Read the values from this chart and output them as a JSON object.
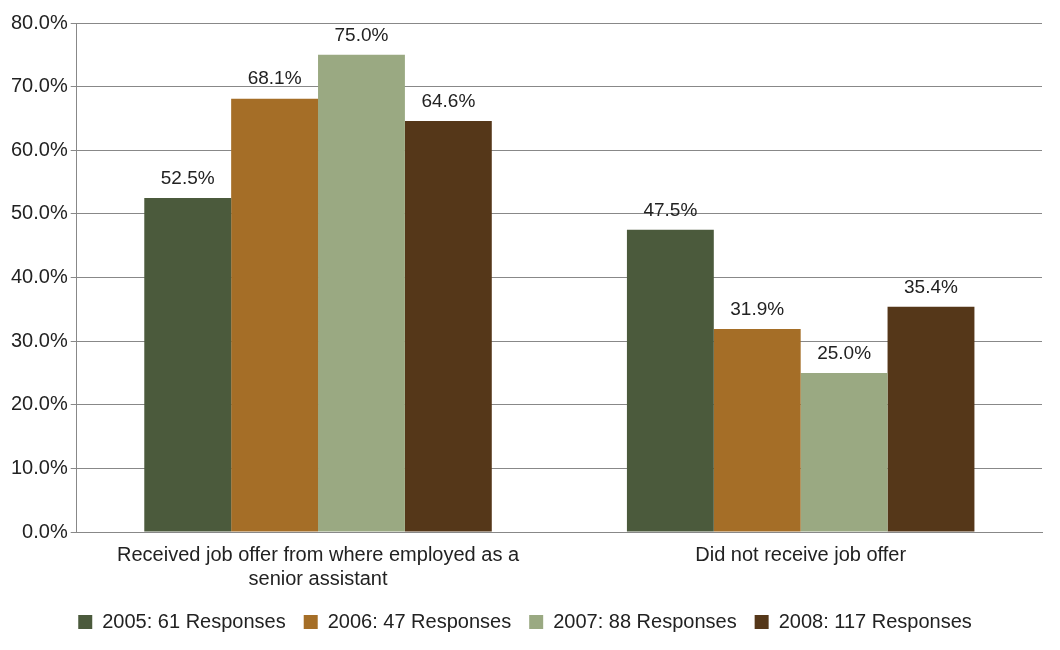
{
  "chart_data": {
    "type": "bar",
    "categories": [
      "Received job offer from where employed as a senior assistant",
      "Did not receive job offer"
    ],
    "series": [
      {
        "name": "2005: 61 Responses",
        "color": "#4b5a3c",
        "values": [
          52.5,
          47.5
        ],
        "value_labels": [
          "52.5%",
          "47.5%"
        ]
      },
      {
        "name": "2006: 47 Responses",
        "color": "#a56e27",
        "values": [
          68.1,
          31.9
        ],
        "value_labels": [
          "68.1%",
          "31.9%"
        ]
      },
      {
        "name": "2007: 88 Responses",
        "color": "#9aa982",
        "values": [
          75.0,
          25.0
        ],
        "value_labels": [
          "75.0%",
          "25.0%"
        ]
      },
      {
        "name": "2008: 117 Responses",
        "color": "#553719",
        "values": [
          64.6,
          35.4
        ],
        "value_labels": [
          "64.6%",
          "35.4%"
        ]
      }
    ],
    "ylim": [
      0,
      80
    ],
    "yticks": [
      {
        "value": 0,
        "label": "0.0%"
      },
      {
        "value": 10,
        "label": "10.0%"
      },
      {
        "value": 20,
        "label": "20.0%"
      },
      {
        "value": 30,
        "label": "30.0%"
      },
      {
        "value": 40,
        "label": "40.0%"
      },
      {
        "value": 50,
        "label": "50.0%"
      },
      {
        "value": 60,
        "label": "60.0%"
      },
      {
        "value": 70,
        "label": "70.0%"
      },
      {
        "value": 80,
        "label": "80.0%"
      }
    ],
    "grid": "y",
    "legend": "bottom"
  }
}
